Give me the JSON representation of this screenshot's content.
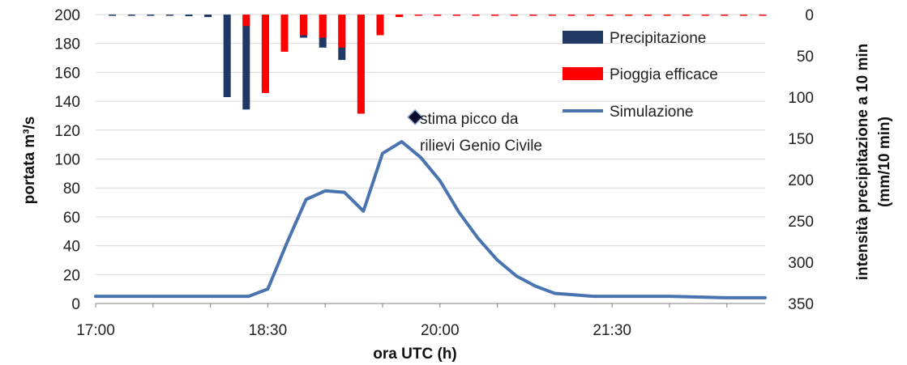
{
  "chart_data": {
    "type": "bar+line",
    "title": "",
    "xlabel": "ora UTC (h)",
    "ylabel_left": "portata m³/s",
    "ylabel_right": [
      "intensità precipitazione a 10 min",
      "(mm/10 min)"
    ],
    "x_range": [
      "17:00",
      "22:50"
    ],
    "x_ticks": [
      "17:00",
      "18:30",
      "20:00",
      "21:30"
    ],
    "ylim_left": [
      0,
      200
    ],
    "yticks_left": [
      "0",
      "20",
      "40",
      "60",
      "80",
      "100",
      "120",
      "140",
      "160",
      "180",
      "200"
    ],
    "ylim_right": [
      0,
      350
    ],
    "right_axis_inverted": true,
    "yticks_right": [
      "0",
      "50",
      "100",
      "150",
      "200",
      "250",
      "300",
      "350"
    ],
    "grid": "horizontal",
    "legend": {
      "placement": "top-right",
      "entries": [
        {
          "label": "Precipitazione",
          "color": "#1f3864",
          "type": "bar"
        },
        {
          "label": "Pioggia efficace",
          "color": "#ff0000",
          "type": "bar"
        },
        {
          "label": "Simulazione",
          "color": "#4a74b0",
          "type": "line"
        }
      ]
    },
    "series": [
      {
        "name": "Precipitazione",
        "type": "bar",
        "axis": "right",
        "color": "#1f3864",
        "x": [
          "17:10",
          "17:20",
          "17:30",
          "17:40",
          "17:50",
          "18:00",
          "18:10",
          "18:20",
          "18:30",
          "18:40",
          "18:50",
          "19:00",
          "19:10",
          "19:20",
          "19:30",
          "19:40",
          "19:50",
          "20:00",
          "20:10",
          "20:20",
          "20:30",
          "20:40",
          "20:50",
          "21:00",
          "21:10",
          "21:20",
          "21:30",
          "21:40",
          "21:50",
          "22:00",
          "22:10",
          "22:20",
          "22:30",
          "22:40",
          "22:50"
        ],
        "values": [
          1,
          1,
          1,
          1,
          2,
          3,
          100,
          115,
          90,
          25,
          28,
          40,
          55,
          120,
          2,
          1,
          1,
          1,
          1,
          1,
          1,
          1,
          1,
          1,
          1,
          1,
          1,
          1,
          1,
          1,
          1,
          1,
          1,
          1,
          1
        ]
      },
      {
        "name": "Pioggia efficace",
        "type": "bar",
        "axis": "right",
        "color": "#ff0000",
        "x": [
          "18:20",
          "18:30",
          "18:40",
          "18:50",
          "19:00",
          "19:10",
          "19:20",
          "19:30",
          "19:40",
          "19:50",
          "20:00",
          "20:10",
          "20:20",
          "20:30",
          "20:40",
          "20:50",
          "21:00",
          "21:10",
          "21:20",
          "21:30",
          "21:40",
          "21:50",
          "22:00",
          "22:10",
          "22:20",
          "22:30",
          "22:40",
          "22:50"
        ],
        "values": [
          14,
          95,
          45,
          25,
          28,
          40,
          120,
          25,
          3,
          1,
          1,
          1,
          1,
          1,
          1,
          1,
          1,
          1,
          1,
          1,
          1,
          1,
          1,
          1,
          1,
          1,
          1,
          1
        ]
      },
      {
        "name": "Simulazione",
        "type": "line",
        "axis": "left",
        "color": "#4a74b0",
        "x": [
          "17:00",
          "17:30",
          "18:00",
          "18:10",
          "18:20",
          "18:30",
          "18:40",
          "18:50",
          "19:00",
          "19:10",
          "19:20",
          "19:30",
          "19:40",
          "19:50",
          "20:00",
          "20:10",
          "20:20",
          "20:30",
          "20:40",
          "20:50",
          "21:00",
          "21:10",
          "21:20",
          "21:30",
          "22:00",
          "22:30",
          "22:50"
        ],
        "values": [
          5,
          5,
          5,
          5,
          5,
          10,
          42,
          72,
          78,
          77,
          64,
          104,
          112,
          101,
          85,
          63,
          45,
          30,
          19,
          12,
          7,
          6,
          5,
          5,
          5,
          4,
          4
        ]
      },
      {
        "name": "stima picco da rilievi Genio Civile",
        "type": "scatter",
        "axis": "left",
        "color": "#0a0a2a",
        "x": [
          "19:47"
        ],
        "values": [
          129
        ]
      }
    ],
    "annotations": [
      "stima picco da",
      "rilievi Genio Civile"
    ]
  }
}
